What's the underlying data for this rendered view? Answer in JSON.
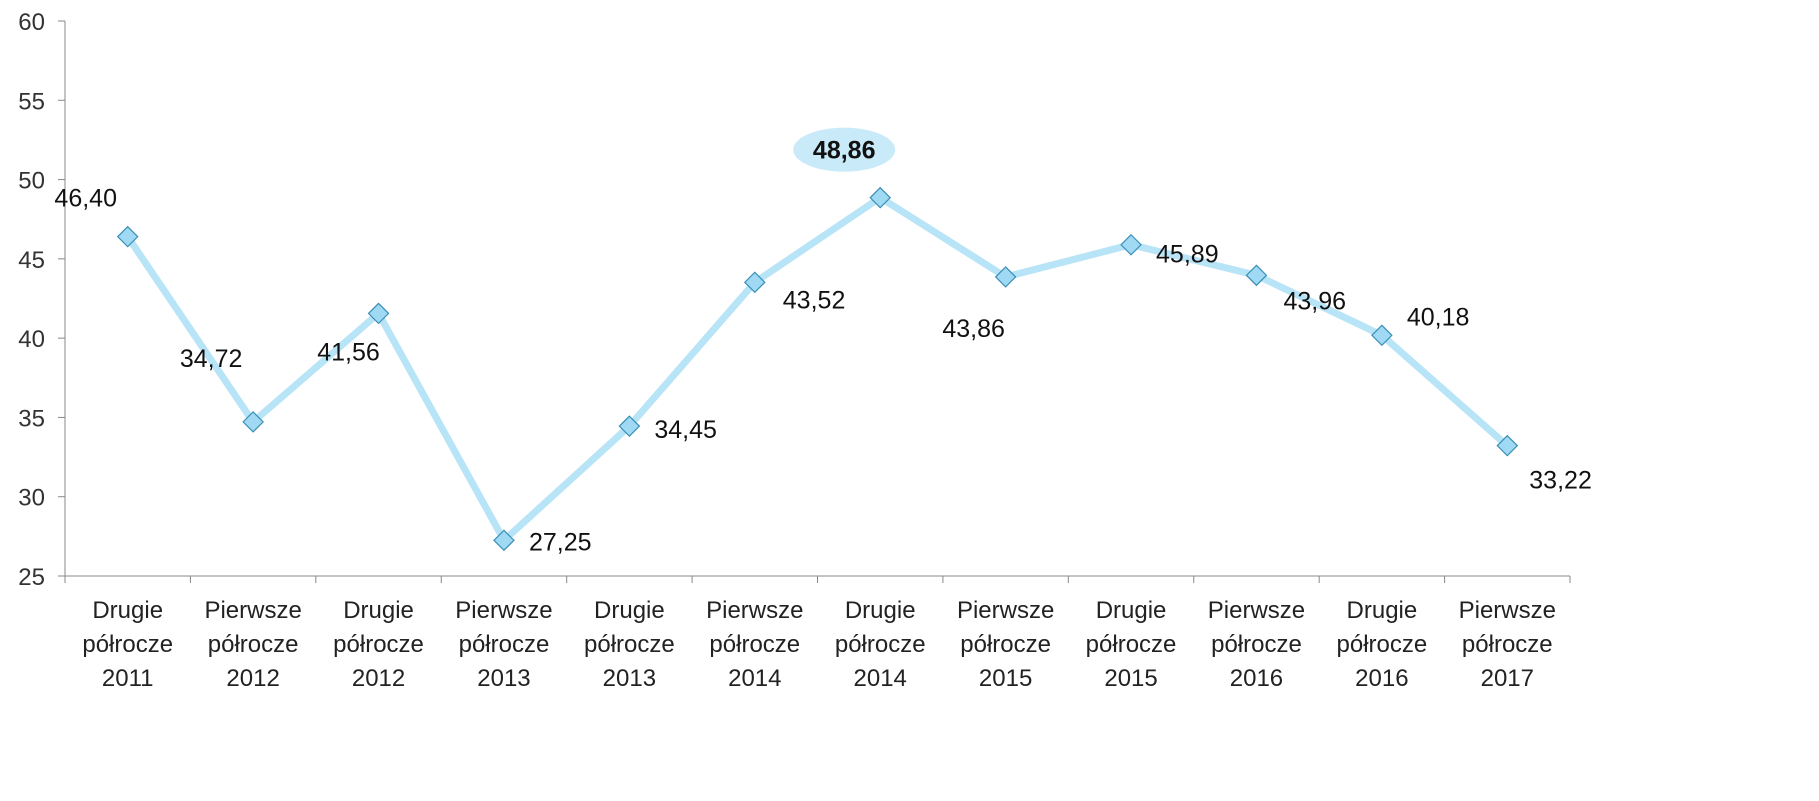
{
  "chart_data": {
    "type": "line",
    "title": "",
    "xlabel": "",
    "ylabel": "",
    "ylim": [
      25,
      60
    ],
    "yticks": [
      25,
      30,
      35,
      40,
      45,
      50,
      55,
      60
    ],
    "grid": false,
    "legend": "none",
    "line_color": "#b8e4f7",
    "marker_fill": "#9fd9f4",
    "marker_stroke": "#3a8fb5",
    "highlight_fill": "#c9eaf9",
    "categories": [
      [
        "Drugie",
        "półrocze",
        "2011"
      ],
      [
        "Pierwsze",
        "półrocze",
        "2012"
      ],
      [
        "Drugie",
        "półrocze",
        "2012"
      ],
      [
        "Pierwsze",
        "półrocze",
        "2013"
      ],
      [
        "Drugie",
        "półrocze",
        "2013"
      ],
      [
        "Pierwsze",
        "półrocze",
        "2014"
      ],
      [
        "Drugie",
        "półrocze",
        "2014"
      ],
      [
        "Pierwsze",
        "półrocze",
        "2015"
      ],
      [
        "Drugie",
        "półrocze",
        "2015"
      ],
      [
        "Pierwsze",
        "półrocze",
        "2016"
      ],
      [
        "Drugie",
        "półrocze",
        "2016"
      ],
      [
        "Pierwsze",
        "półrocze",
        "2017"
      ]
    ],
    "values": [
      46.4,
      34.72,
      41.56,
      27.25,
      34.45,
      43.52,
      48.86,
      43.86,
      45.89,
      43.96,
      40.18,
      33.22
    ],
    "labels": [
      "46,40",
      "34,72",
      "41,56",
      "27,25",
      "34,45",
      "43,52",
      "48,86",
      "43,86",
      "45,89",
      "43,96",
      "40,18",
      "33,22"
    ],
    "highlight_index": 6
  }
}
